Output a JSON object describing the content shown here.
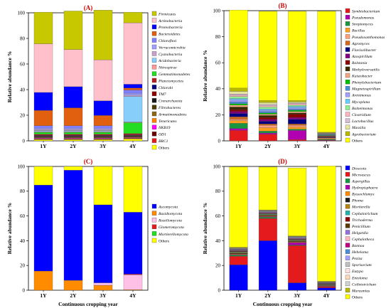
{
  "chart_data": [
    {
      "id": "A",
      "type": "bar",
      "stacked": true,
      "title": "(A)",
      "xlabel": "",
      "ylabel": "Relative abundance  %",
      "ylim": [
        0,
        100
      ],
      "yticks": [
        0,
        20,
        40,
        60,
        80,
        100
      ],
      "categories": [
        "1Y",
        "2Y",
        "3Y",
        "4Y"
      ],
      "legend_position": "right",
      "series": [
        {
          "name": "Others",
          "color": "#ffff00",
          "values": [
            1.0,
            1.0,
            1.0,
            1.5
          ]
        },
        {
          "name": "BRC1",
          "color": "#e41a1c",
          "values": [
            0.3,
            0.3,
            0.3,
            0.3
          ]
        },
        {
          "name": "OD1",
          "color": "#6b0000",
          "values": [
            0.3,
            0.3,
            0.3,
            0.3
          ]
        },
        {
          "name": "NKB19",
          "color": "#ff00ff",
          "values": [
            0.4,
            0.4,
            0.4,
            0.4
          ]
        },
        {
          "name": "Tenericutes",
          "color": "#ff7f00",
          "values": [
            0.3,
            0.3,
            0.3,
            0.3
          ]
        },
        {
          "name": "Armatimonadetes",
          "color": "#8b6914",
          "values": [
            0.3,
            0.3,
            0.3,
            0.3
          ]
        },
        {
          "name": "Fibrobacteres",
          "color": "#4d3b00",
          "values": [
            0.5,
            0.5,
            0.5,
            0.5
          ]
        },
        {
          "name": "Crenarchaeota",
          "color": "#1a1a1a",
          "values": [
            0.4,
            0.4,
            0.4,
            0.4
          ]
        },
        {
          "name": "TM7",
          "color": "#8b0000",
          "values": [
            0.3,
            0.3,
            0.3,
            0.3
          ]
        },
        {
          "name": "Chlorobi",
          "color": "#000080",
          "values": [
            0.4,
            0.4,
            0.4,
            0.4
          ]
        },
        {
          "name": "Planctomycetes",
          "color": "#b22222",
          "values": [
            1.0,
            1.0,
            1.0,
            1.0
          ]
        },
        {
          "name": "Gemmatimonadetes",
          "color": "#22dd22",
          "values": [
            1.5,
            1.5,
            1.5,
            8.5
          ]
        },
        {
          "name": "Nitrospirae",
          "color": "#ff9999",
          "values": [
            0.5,
            0.5,
            0.5,
            0.5
          ]
        },
        {
          "name": "Acidobacteria",
          "color": "#87cefa",
          "values": [
            0.8,
            0.8,
            0.8,
            20.0
          ]
        },
        {
          "name": "Cyanobacteria",
          "color": "#c8a2c8",
          "values": [
            0.8,
            0.8,
            0.8,
            1.0
          ]
        },
        {
          "name": "Verrucomicrobia",
          "color": "#a0a0ff",
          "values": [
            1.0,
            1.0,
            1.0,
            1.5
          ]
        },
        {
          "name": "Chloroflexi",
          "color": "#8080ff",
          "values": [
            2.0,
            2.0,
            2.0,
            2.5
          ]
        },
        {
          "name": "Bacteroidetes",
          "color": "#e06010",
          "values": [
            12.0,
            14.0,
            8.0,
            1.5
          ]
        },
        {
          "name": "Proteobacteria",
          "color": "#0000ff",
          "values": [
            14.0,
            16.5,
            11.5,
            3.0
          ]
        },
        {
          "name": "Actinobacteria",
          "color": "#ffc0cb",
          "values": [
            38.0,
            29.0,
            32.0,
            48.0
          ]
        },
        {
          "name": "Firmicutes",
          "color": "#c8c800",
          "values": [
            24.7,
            30.1,
            38.8,
            8.3
          ]
        }
      ]
    },
    {
      "id": "B",
      "type": "bar",
      "stacked": true,
      "title": "(B)",
      "xlabel": "",
      "ylabel": "Relative abundance  %",
      "ylim": [
        0,
        100
      ],
      "yticks": [
        0,
        20,
        40,
        60,
        80,
        100
      ],
      "categories": [
        "1Y",
        "2Y",
        "3Y",
        "4Y"
      ],
      "legend_position": "right",
      "series": [
        {
          "name": "Symbiobacterium",
          "color": "#e41a1c",
          "values": [
            8.0,
            5.0,
            1.0,
            0.3
          ]
        },
        {
          "name": "Pseudomonas",
          "color": "#b000b0",
          "values": [
            1.5,
            1.0,
            7.0,
            0.3
          ]
        },
        {
          "name": "Streptomyces",
          "color": "#1a9641",
          "values": [
            4.0,
            1.5,
            1.0,
            0.5
          ]
        },
        {
          "name": "Bacillus",
          "color": "#ff9f1c",
          "values": [
            2.0,
            2.5,
            1.5,
            0.5
          ]
        },
        {
          "name": "Pseudoxanthomonas",
          "color": "#ffa07a",
          "values": [
            1.0,
            2.0,
            1.5,
            0.5
          ]
        },
        {
          "name": "Agromyces",
          "color": "#d2691e",
          "values": [
            2.0,
            1.0,
            1.0,
            0.3
          ]
        },
        {
          "name": "Flavisolibacter",
          "color": "#000080",
          "values": [
            2.5,
            2.0,
            3.5,
            0.3
          ]
        },
        {
          "name": "Azospirillum",
          "color": "#800080",
          "values": [
            1.5,
            1.5,
            1.5,
            0.3
          ]
        },
        {
          "name": "Ralstonia",
          "color": "#8b0000",
          "values": [
            1.5,
            1.5,
            2.5,
            0.3
          ]
        },
        {
          "name": "Methyloversatilis",
          "color": "#3a2a00",
          "values": [
            2.0,
            1.5,
            1.0,
            0.3
          ]
        },
        {
          "name": "Kaistobacter",
          "color": "#f4a582",
          "values": [
            1.5,
            1.0,
            1.0,
            0.3
          ]
        },
        {
          "name": "Phenylobacterium",
          "color": "#00c000",
          "values": [
            1.0,
            1.0,
            1.0,
            0.3
          ]
        },
        {
          "name": "Magnetospirillum",
          "color": "#4a8ed8",
          "values": [
            1.5,
            1.0,
            1.0,
            0.3
          ]
        },
        {
          "name": "Arenimonas",
          "color": "#a0a0ff",
          "values": [
            1.5,
            1.0,
            1.0,
            0.3
          ]
        },
        {
          "name": "Mycoplana",
          "color": "#66ccff",
          "values": [
            1.0,
            1.0,
            1.0,
            0.3
          ]
        },
        {
          "name": "Balneimonas",
          "color": "#90ee90",
          "values": [
            1.5,
            1.5,
            1.0,
            0.3
          ]
        },
        {
          "name": "Clostridium",
          "color": "#ffb6c1",
          "values": [
            1.0,
            1.0,
            1.0,
            0.3
          ]
        },
        {
          "name": "Lactobacillus",
          "color": "#d8bfd8",
          "values": [
            1.0,
            1.0,
            0.5,
            0.3
          ]
        },
        {
          "name": "Massilia",
          "color": "#e6e6a0",
          "values": [
            2.0,
            1.5,
            1.0,
            0.3
          ]
        },
        {
          "name": "Agrobacterium",
          "color": "#b8b800",
          "values": [
            2.5,
            1.5,
            1.0,
            0.3
          ]
        },
        {
          "name": "Others",
          "color": "#ffff00",
          "values": [
            60.0,
            68.5,
            68.5,
            93.0
          ]
        }
      ]
    },
    {
      "id": "C",
      "type": "bar",
      "stacked": true,
      "title": "(C)",
      "xlabel": "Continuous cropping year",
      "ylabel": "Relative abundance  %",
      "ylim": [
        0,
        100
      ],
      "yticks": [
        0,
        20,
        40,
        60,
        80,
        100
      ],
      "categories": [
        "1Y",
        "2Y",
        "3Y",
        "4Y"
      ],
      "legend_position": "right",
      "series": [
        {
          "name": "Basidiomycota",
          "color": "#ff8c00",
          "values": [
            15.5,
            8.0,
            4.0,
            0.5
          ]
        },
        {
          "name": "Rozellomycota",
          "color": "#ffc0e8",
          "values": [
            0.0,
            0.0,
            2.0,
            12.0
          ]
        },
        {
          "name": "Glomeromycota",
          "color": "#e41a1c",
          "values": [
            0.0,
            0.0,
            0.0,
            0.5
          ]
        },
        {
          "name": "Mortierellomycota",
          "color": "#22dd22",
          "values": [
            0.0,
            0.0,
            0.0,
            0.0
          ]
        },
        {
          "name": "Ascomycota",
          "color": "#0000ff",
          "values": [
            69.5,
            89.0,
            63.0,
            50.0
          ]
        },
        {
          "name": "Others",
          "color": "#ffff00",
          "values": [
            15.0,
            3.0,
            31.0,
            37.0
          ]
        }
      ]
    },
    {
      "id": "D",
      "type": "bar",
      "stacked": true,
      "title": "(D)",
      "xlabel": "Continuous cropping year",
      "ylabel": "Relative abundance  %",
      "ylim": [
        0,
        100
      ],
      "yticks": [
        0,
        20,
        40,
        60,
        80,
        100
      ],
      "categories": [
        "1Y",
        "2Y",
        "3Y",
        "4Y"
      ],
      "legend_position": "right",
      "series": [
        {
          "name": "Dioscoia",
          "color": "#0000ff",
          "values": [
            20.5,
            40.0,
            6.0,
            2.0
          ]
        },
        {
          "name": "Microascus",
          "color": "#e41a1c",
          "values": [
            7.0,
            18.0,
            30.0,
            1.0
          ]
        },
        {
          "name": "Aspergillus",
          "color": "#1a9641",
          "values": [
            1.0,
            1.0,
            0.5,
            0.3
          ]
        },
        {
          "name": "Hydropisphaera",
          "color": "#b000b0",
          "values": [
            0.5,
            0.5,
            2.0,
            0.3
          ]
        },
        {
          "name": "Byssochlamys",
          "color": "#ff8c00",
          "values": [
            0.5,
            0.5,
            0.5,
            0.3
          ]
        },
        {
          "name": "Phoma",
          "color": "#1a1a1a",
          "values": [
            0.5,
            0.5,
            0.5,
            0.3
          ]
        },
        {
          "name": "Mortierella",
          "color": "#b8860b",
          "values": [
            0.5,
            0.5,
            0.5,
            0.3
          ]
        },
        {
          "name": "Cephalotrichum",
          "color": "#20b2aa",
          "values": [
            0.5,
            0.5,
            0.5,
            0.3
          ]
        },
        {
          "name": "Trichoderma",
          "color": "#8b0000",
          "values": [
            0.5,
            0.3,
            0.3,
            0.2
          ]
        },
        {
          "name": "Penicillium",
          "color": "#5a3a00",
          "values": [
            0.3,
            0.3,
            0.3,
            0.2
          ]
        },
        {
          "name": "Helgardia",
          "color": "#9370db",
          "values": [
            0.3,
            0.3,
            0.3,
            0.2
          ]
        },
        {
          "name": "Cephalotheca",
          "color": "#ffb6c1",
          "values": [
            0.3,
            0.3,
            0.3,
            0.2
          ]
        },
        {
          "name": "Bannoa",
          "color": "#c00080",
          "values": [
            0.3,
            0.3,
            0.3,
            0.2
          ]
        },
        {
          "name": "Hebeloma",
          "color": "#4a8ed8",
          "values": [
            0.3,
            0.3,
            0.3,
            0.2
          ]
        },
        {
          "name": "Peziza",
          "color": "#a0a0ff",
          "values": [
            0.3,
            0.3,
            0.3,
            0.2
          ]
        },
        {
          "name": "Sporisorium",
          "color": "#c0c0c0",
          "values": [
            0.3,
            0.3,
            0.3,
            0.2
          ]
        },
        {
          "name": "Eutypa",
          "color": "#ffe4e1",
          "values": [
            0.3,
            0.3,
            0.3,
            0.2
          ]
        },
        {
          "name": "Entoloma",
          "color": "#ffdab9",
          "values": [
            0.3,
            0.2,
            0.2,
            0.2
          ]
        },
        {
          "name": "Colletotrichum",
          "color": "#d3d3d3",
          "values": [
            0.2,
            0.2,
            0.2,
            0.2
          ]
        },
        {
          "name": "Marasmius",
          "color": "#b8b800",
          "values": [
            0.3,
            0.2,
            0.2,
            0.2
          ]
        },
        {
          "name": "Others",
          "color": "#ffff00",
          "values": [
            65.0,
            34.8,
            55.0,
            93.2
          ]
        }
      ]
    }
  ]
}
